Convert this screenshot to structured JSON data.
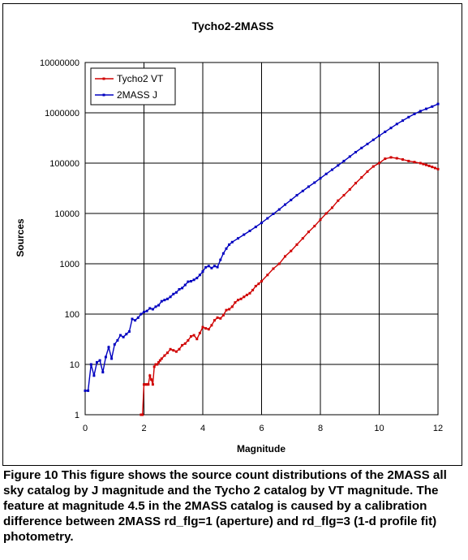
{
  "chart_data": {
    "type": "line",
    "title": "Tycho2-2MASS",
    "xlabel": "Magnitude",
    "ylabel": "Sources",
    "xlim": [
      0,
      12
    ],
    "ylim": [
      1,
      10000000
    ],
    "yscale": "log",
    "grid": true,
    "legend_position": "top-left",
    "x_ticks": [
      "0",
      "2",
      "4",
      "6",
      "8",
      "10",
      "12"
    ],
    "y_ticks": [
      "1",
      "10",
      "100",
      "1000",
      "10000",
      "100000",
      "1000000",
      "10000000"
    ],
    "series": [
      {
        "name": "Tycho2 VT",
        "color": "#d00000",
        "x": [
          1.9,
          1.95,
          2.0,
          2.05,
          2.1,
          2.15,
          2.2,
          2.25,
          2.3,
          2.35,
          2.4,
          2.45,
          2.5,
          2.55,
          2.6,
          2.7,
          2.8,
          2.9,
          3.0,
          3.1,
          3.2,
          3.3,
          3.4,
          3.5,
          3.6,
          3.7,
          3.8,
          3.9,
          4.0,
          4.1,
          4.2,
          4.3,
          4.4,
          4.5,
          4.6,
          4.7,
          4.8,
          4.9,
          5.0,
          5.1,
          5.2,
          5.3,
          5.4,
          5.5,
          5.6,
          5.7,
          5.8,
          5.9,
          6.0,
          6.2,
          6.4,
          6.6,
          6.8,
          7.0,
          7.2,
          7.4,
          7.6,
          7.8,
          8.0,
          8.2,
          8.4,
          8.6,
          8.8,
          9.0,
          9.2,
          9.4,
          9.6,
          9.8,
          10.0,
          10.2,
          10.4,
          10.6,
          10.8,
          11.0,
          11.2,
          11.4,
          11.5,
          11.6,
          11.7,
          11.8,
          11.9,
          12.0
        ],
        "values": [
          1,
          1,
          4,
          4,
          4,
          4,
          6,
          5,
          4,
          9,
          10,
          10,
          11,
          12,
          13,
          15,
          17,
          20,
          19,
          18,
          20,
          24,
          26,
          30,
          36,
          38,
          32,
          42,
          55,
          52,
          50,
          60,
          75,
          85,
          82,
          95,
          120,
          125,
          140,
          170,
          190,
          200,
          220,
          240,
          260,
          300,
          360,
          400,
          450,
          600,
          800,
          1000,
          1400,
          1800,
          2400,
          3200,
          4300,
          5600,
          7500,
          10000,
          13000,
          18000,
          23000,
          30000,
          40000,
          52000,
          68000,
          86000,
          100000,
          122000,
          130000,
          125000,
          118000,
          110000,
          105000,
          100000,
          96000,
          92000,
          88000,
          84000,
          80000,
          76000
        ]
      },
      {
        "name": "2MASS J",
        "color": "#0000c0",
        "x": [
          0.0,
          0.1,
          0.2,
          0.3,
          0.4,
          0.5,
          0.6,
          0.7,
          0.8,
          0.9,
          1.0,
          1.1,
          1.2,
          1.3,
          1.4,
          1.5,
          1.6,
          1.7,
          1.8,
          1.9,
          2.0,
          2.1,
          2.2,
          2.3,
          2.4,
          2.5,
          2.6,
          2.7,
          2.8,
          2.9,
          3.0,
          3.1,
          3.2,
          3.3,
          3.4,
          3.5,
          3.6,
          3.7,
          3.8,
          3.9,
          4.0,
          4.1,
          4.2,
          4.3,
          4.4,
          4.5,
          4.6,
          4.7,
          4.8,
          4.9,
          5.0,
          5.2,
          5.4,
          5.6,
          5.8,
          6.0,
          6.2,
          6.4,
          6.6,
          6.8,
          7.0,
          7.2,
          7.4,
          7.6,
          7.8,
          8.0,
          8.2,
          8.4,
          8.6,
          8.8,
          9.0,
          9.2,
          9.4,
          9.6,
          9.8,
          10.0,
          10.2,
          10.4,
          10.6,
          10.8,
          11.0,
          11.2,
          11.4,
          11.6,
          11.8,
          12.0
        ],
        "values": [
          3,
          3,
          10,
          6,
          11,
          12,
          7,
          14,
          22,
          13,
          25,
          30,
          38,
          35,
          40,
          45,
          80,
          75,
          85,
          100,
          110,
          115,
          130,
          125,
          140,
          150,
          180,
          190,
          200,
          220,
          250,
          270,
          310,
          330,
          380,
          440,
          450,
          480,
          520,
          600,
          700,
          850,
          900,
          820,
          900,
          860,
          1200,
          1600,
          2000,
          2400,
          2700,
          3200,
          3800,
          4500,
          5400,
          6500,
          8000,
          9800,
          12000,
          15000,
          18500,
          23000,
          28000,
          34000,
          41000,
          50000,
          61000,
          74000,
          90000,
          110000,
          135000,
          165000,
          200000,
          240000,
          290000,
          350000,
          420000,
          500000,
          600000,
          700000,
          820000,
          950000,
          1080000,
          1200000,
          1330000,
          1500000
        ]
      }
    ]
  },
  "caption": "Figure 10  This figure shows the source count distributions of the 2MASS all sky catalog by J magnitude and the Tycho 2 catalog by VT magnitude. The feature at magnitude 4.5 in the 2MASS catalog is caused by a calibration difference between 2MASS rd_flg=1 (aperture) and rd_flg=3 (1-d profile fit) photometry."
}
